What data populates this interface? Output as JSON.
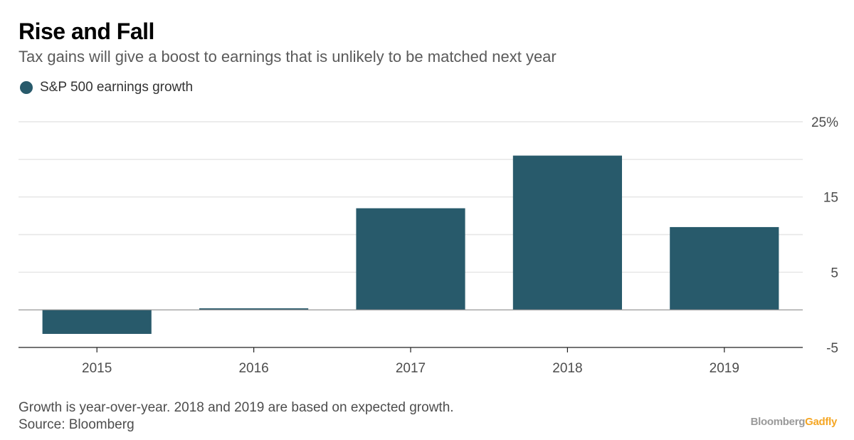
{
  "header": {
    "title": "Rise and Fall",
    "subtitle": "Tax gains will give a boost to earnings that is unlikely to be matched next year"
  },
  "legend": {
    "label": "S&P 500 earnings growth",
    "color": "#285a6b"
  },
  "footer": {
    "note": "Growth is year-over-year. 2018 and 2019 are based on expected growth.",
    "source": "Source: Bloomberg",
    "brand_a": "Bloomberg",
    "brand_b": "Gadfly"
  },
  "chart_data": {
    "type": "bar",
    "categories": [
      "2015",
      "2016",
      "2017",
      "2018",
      "2019"
    ],
    "series": [
      {
        "name": "S&P 500 earnings growth",
        "values": [
          -3.2,
          0.2,
          13.5,
          20.5,
          11.0
        ],
        "color": "#285a6b"
      }
    ],
    "ylim": [
      -5,
      25
    ],
    "yticks": [
      -5,
      5,
      15,
      25
    ],
    "ytick_labels": [
      "-5",
      "5",
      "15",
      "25%"
    ],
    "gridlines": [
      -5,
      0,
      5,
      10,
      15,
      20,
      25
    ],
    "grid": true,
    "legend_position": "top-left"
  }
}
